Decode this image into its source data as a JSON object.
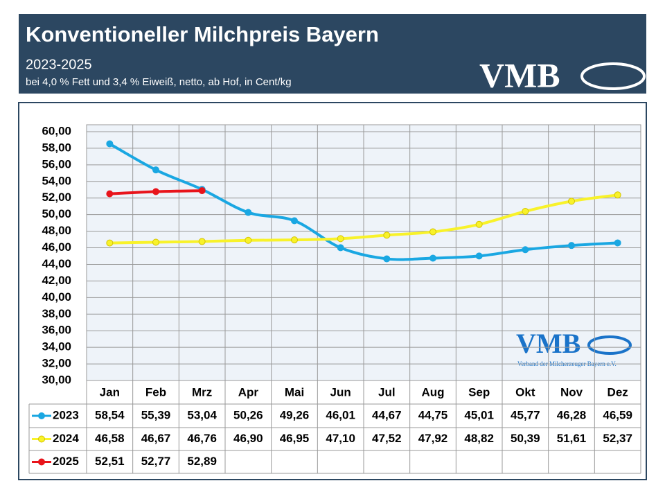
{
  "header": {
    "title": "Konventioneller Milchpreis Bayern",
    "subtitle": "2023-2025",
    "note": "bei 4,0 % Fett und 3,4 % Eiweiß, netto, ab Hof, in Cent/kg",
    "logo": "VMB"
  },
  "chart_data": {
    "type": "line",
    "watermark": {
      "logo": "VMB",
      "caption": "Verband der Milcherzeuger Bayern e.V."
    },
    "categories": [
      "Jan",
      "Feb",
      "Mrz",
      "Apr",
      "Mai",
      "Jun",
      "Jul",
      "Aug",
      "Sep",
      "Okt",
      "Nov",
      "Dez"
    ],
    "series": [
      {
        "name": "2023",
        "color": "#1aa7e2",
        "values": [
          58.54,
          55.39,
          53.04,
          50.26,
          49.26,
          46.01,
          44.67,
          44.75,
          45.01,
          45.77,
          46.28,
          46.59
        ],
        "value_labels": [
          "58,54",
          "55,39",
          "53,04",
          "50,26",
          "49,26",
          "46,01",
          "44,67",
          "44,75",
          "45,01",
          "45,77",
          "46,28",
          "46,59"
        ]
      },
      {
        "name": "2024",
        "color": "#f8f22a",
        "values": [
          46.58,
          46.67,
          46.76,
          46.9,
          46.95,
          47.1,
          47.52,
          47.92,
          48.82,
          50.39,
          51.61,
          52.37
        ],
        "value_labels": [
          "46,58",
          "46,67",
          "46,76",
          "46,90",
          "46,95",
          "47,10",
          "47,52",
          "47,92",
          "48,82",
          "50,39",
          "51,61",
          "52,37"
        ]
      },
      {
        "name": "2025",
        "color": "#e8141b",
        "values": [
          52.51,
          52.77,
          52.89,
          null,
          null,
          null,
          null,
          null,
          null,
          null,
          null,
          null
        ],
        "value_labels": [
          "52,51",
          "52,77",
          "52,89",
          null,
          null,
          null,
          null,
          null,
          null,
          null,
          null,
          null
        ]
      }
    ],
    "ylim": [
      30,
      60
    ],
    "yticks": [
      {
        "value": 30,
        "label": "30,00"
      },
      {
        "value": 32,
        "label": "32,00"
      },
      {
        "value": 34,
        "label": "34,00"
      },
      {
        "value": 36,
        "label": "36,00"
      },
      {
        "value": 38,
        "label": "38,00"
      },
      {
        "value": 40,
        "label": "40,00"
      },
      {
        "value": 42,
        "label": "42,00"
      },
      {
        "value": 44,
        "label": "44,00"
      },
      {
        "value": 46,
        "label": "46,00"
      },
      {
        "value": 48,
        "label": "48,00"
      },
      {
        "value": 50,
        "label": "50,00"
      },
      {
        "value": 52,
        "label": "52,00"
      },
      {
        "value": 54,
        "label": "54,00"
      },
      {
        "value": 56,
        "label": "56,00"
      },
      {
        "value": 58,
        "label": "58,00"
      },
      {
        "value": 60,
        "label": "60,00"
      }
    ],
    "grid": true
  }
}
